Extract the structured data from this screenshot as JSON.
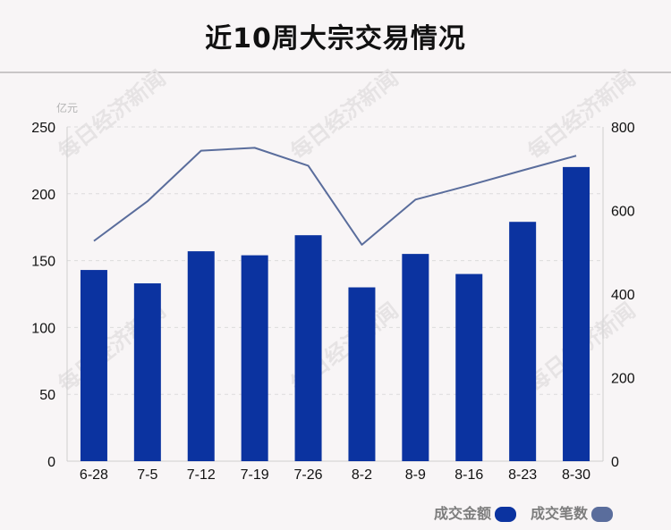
{
  "title": "近10周大宗交易情况",
  "watermark": "每日经济新闻",
  "colors": {
    "bar": "#0b33a0",
    "line": "#5a6d9c",
    "grid": "#dcdcdc",
    "axis": "#cfcfcf"
  },
  "chart_data": {
    "type": "bar+line",
    "categories": [
      "6-28",
      "7-5",
      "7-12",
      "7-19",
      "7-26",
      "8-2",
      "8-9",
      "8-16",
      "8-23",
      "8-30"
    ],
    "series": [
      {
        "name": "成交金额",
        "type": "bar",
        "axis": "left",
        "values": [
          143,
          133,
          157,
          154,
          169,
          130,
          155,
          140,
          179,
          220
        ]
      },
      {
        "name": "成交笔数",
        "type": "line",
        "axis": "right",
        "values": [
          527,
          622,
          743,
          750,
          707,
          518,
          626,
          660,
          696,
          731
        ]
      }
    ],
    "y_left": {
      "unit": "亿元",
      "min": 0,
      "max": 250,
      "ticks": [
        0,
        50,
        100,
        150,
        200,
        250
      ]
    },
    "y_right": {
      "min": 0,
      "max": 800,
      "ticks": [
        0,
        200,
        400,
        600,
        800
      ]
    },
    "grid": true,
    "legend_position": "bottom-right"
  }
}
